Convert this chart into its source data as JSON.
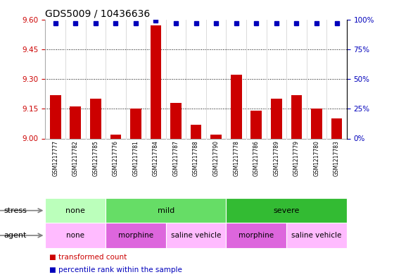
{
  "title": "GDS5009 / 10436636",
  "samples": [
    "GSM1217777",
    "GSM1217782",
    "GSM1217785",
    "GSM1217776",
    "GSM1217781",
    "GSM1217784",
    "GSM1217787",
    "GSM1217788",
    "GSM1217790",
    "GSM1217778",
    "GSM1217786",
    "GSM1217789",
    "GSM1217779",
    "GSM1217780",
    "GSM1217783"
  ],
  "bar_values": [
    9.22,
    9.16,
    9.2,
    9.02,
    9.15,
    9.57,
    9.18,
    9.07,
    9.02,
    9.32,
    9.14,
    9.2,
    9.22,
    9.15,
    9.1
  ],
  "dot_values": [
    97,
    97,
    97,
    97,
    97,
    99,
    97,
    97,
    97,
    97,
    97,
    97,
    97,
    97,
    97
  ],
  "ylim_left": [
    9.0,
    9.6
  ],
  "ylim_right": [
    0,
    100
  ],
  "yticks_left": [
    9.0,
    9.15,
    9.3,
    9.45,
    9.6
  ],
  "yticks_right": [
    0,
    25,
    50,
    75,
    100
  ],
  "ytick_labels_right": [
    "0%",
    "25%",
    "50%",
    "75%",
    "100%"
  ],
  "bar_color": "#cc0000",
  "dot_color": "#0000bb",
  "grid_lines": [
    9.15,
    9.3,
    9.45
  ],
  "stress_groups": [
    {
      "label": "none",
      "start": 0,
      "end": 3,
      "color": "#bbffbb"
    },
    {
      "label": "mild",
      "start": 3,
      "end": 9,
      "color": "#66dd66"
    },
    {
      "label": "severe",
      "start": 9,
      "end": 15,
      "color": "#33bb33"
    }
  ],
  "agent_groups": [
    {
      "label": "none",
      "start": 0,
      "end": 3,
      "color": "#ffbbff"
    },
    {
      "label": "morphine",
      "start": 3,
      "end": 6,
      "color": "#dd66dd"
    },
    {
      "label": "saline vehicle",
      "start": 6,
      "end": 9,
      "color": "#ffbbff"
    },
    {
      "label": "morphine",
      "start": 9,
      "end": 12,
      "color": "#dd66dd"
    },
    {
      "label": "saline vehicle",
      "start": 12,
      "end": 15,
      "color": "#ffbbff"
    }
  ],
  "stress_label": "stress",
  "agent_label": "agent",
  "legend_items": [
    {
      "label": "transformed count",
      "color": "#cc0000"
    },
    {
      "label": "percentile rank within the sample",
      "color": "#0000bb"
    }
  ],
  "background_color": "#ffffff",
  "title_fontsize": 10,
  "axis_label_color_left": "#cc0000",
  "axis_label_color_right": "#0000bb",
  "xtick_bg": "#cccccc",
  "col_divider_color": "#ffffff"
}
